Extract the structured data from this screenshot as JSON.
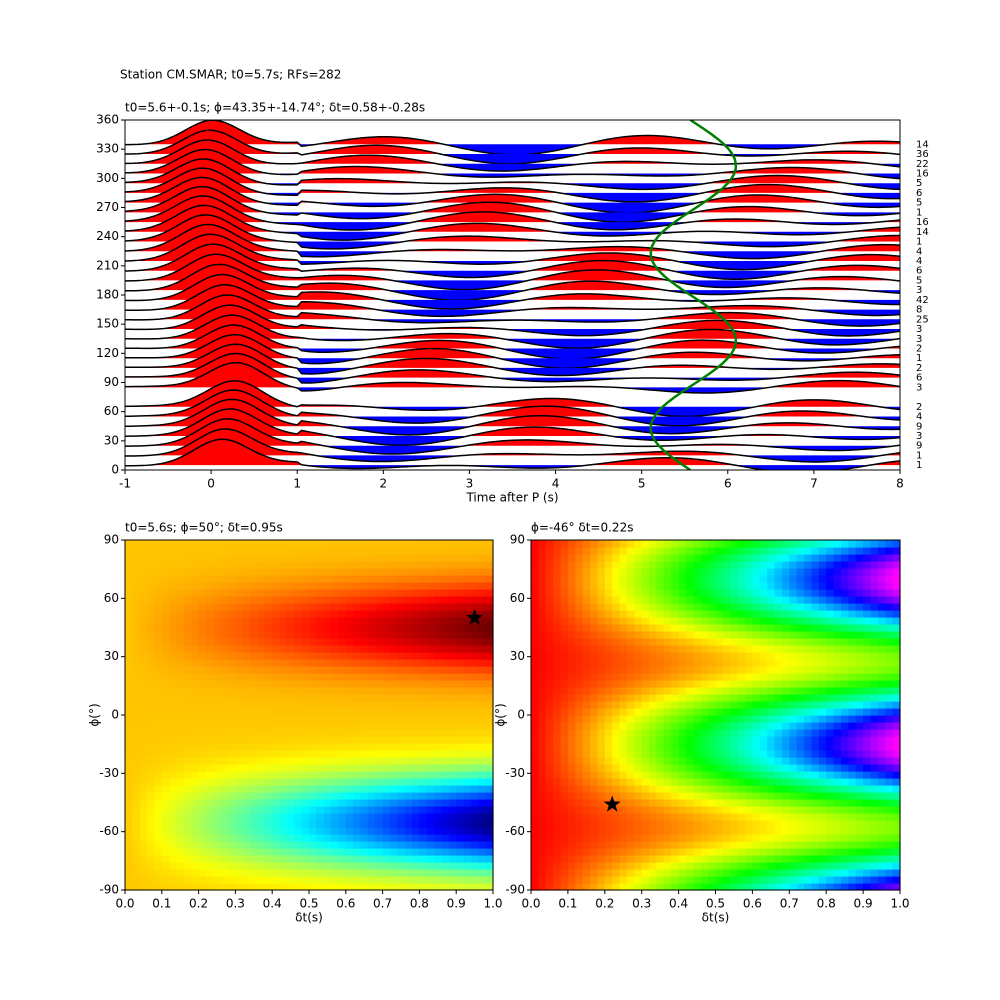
{
  "suptitle": "Station CM.SMAR; t0=5.7s; RFs=282",
  "chart_data": [
    {
      "type": "wiggle",
      "title": "t0=5.6+-0.1s; ϕ=43.35+-14.74°; δt=0.58+-0.28s",
      "xlabel": "Time after P (s)",
      "xlim": [
        -1,
        8
      ],
      "xticks": [
        -1,
        0,
        1,
        2,
        3,
        4,
        5,
        6,
        7,
        8
      ],
      "ylim": [
        0,
        360
      ],
      "yticks": [
        0,
        30,
        60,
        90,
        120,
        150,
        180,
        210,
        240,
        270,
        300,
        330,
        360
      ],
      "baz": [
        335,
        325,
        315,
        305,
        295,
        285,
        275,
        265,
        255,
        245,
        235,
        225,
        215,
        205,
        195,
        185,
        175,
        165,
        155,
        145,
        135,
        125,
        115,
        105,
        95,
        85,
        65,
        55,
        45,
        35,
        25,
        15,
        5
      ],
      "counts": [
        14,
        36,
        22,
        16,
        5,
        6,
        5,
        1,
        16,
        14,
        1,
        4,
        4,
        6,
        5,
        3,
        42,
        8,
        25,
        3,
        3,
        2,
        1,
        2,
        6,
        3,
        2,
        4,
        9,
        3,
        9,
        1,
        1
      ]
    },
    {
      "type": "heatmap",
      "colormap": "jet",
      "title": "t0=5.6s; ϕ=50°; δt=0.95s",
      "xlabel": "δt(s)",
      "ylabel": "ϕ(°)",
      "xlim": [
        0,
        1
      ],
      "xticks": [
        {
          "value": 0,
          "label": "0.0"
        },
        0.1,
        0.2,
        0.3,
        0.4,
        0.5,
        0.6,
        0.7,
        0.8,
        0.9,
        {
          "value": 1,
          "label": "1.0"
        }
      ],
      "ylim": [
        -90,
        90
      ],
      "yticks": [
        -90,
        -60,
        -30,
        0,
        30,
        60,
        90
      ],
      "star": {
        "x": 0.95,
        "y": 50
      }
    },
    {
      "type": "heatmap",
      "colormap": "hsv",
      "title": "ϕ=-46° δt=0.22s",
      "xlabel": "δt(s)",
      "ylabel": "ϕ(°)",
      "xlim": [
        0,
        1
      ],
      "xticks": [
        {
          "value": 0,
          "label": "0.0"
        },
        0.1,
        0.2,
        0.3,
        0.4,
        0.5,
        0.6,
        0.7,
        0.8,
        0.9,
        {
          "value": 1,
          "label": "1.0"
        }
      ],
      "ylim": [
        -90,
        90
      ],
      "yticks": [
        -90,
        -60,
        -30,
        0,
        30,
        60,
        90
      ],
      "star": {
        "x": 0.22,
        "y": -46
      }
    }
  ]
}
